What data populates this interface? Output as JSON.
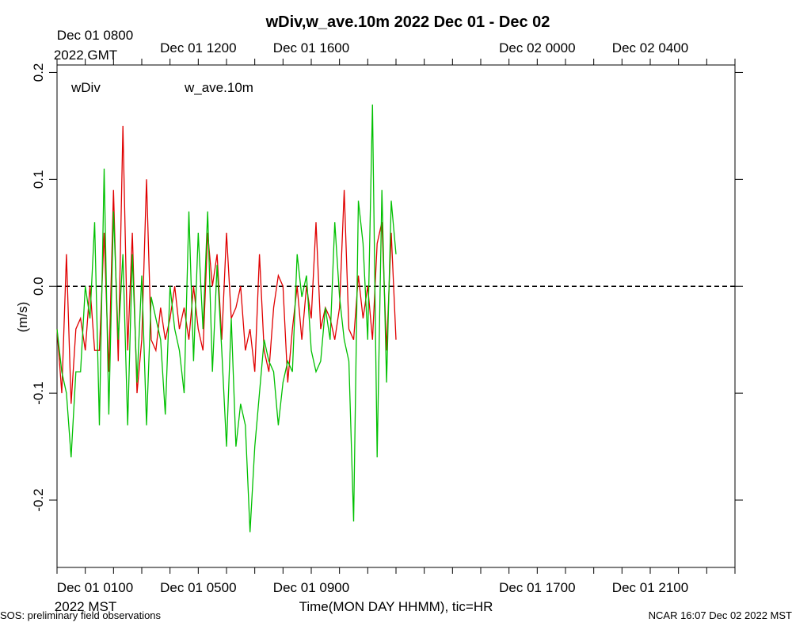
{
  "chart_data": {
    "type": "line",
    "title": "wDiv,w_ave.10m 2022 Dec 01 - Dec 02",
    "y_label": "(m/s)",
    "x_label": "Time(MON DAY HHMM), tic=HR",
    "x_sublabel": "2022 MST",
    "x2_sublabel": "2022 GMT",
    "footer_left": "SOS: preliminary field observations",
    "footer_right": "NCAR 16:07 Dec 02 2022 MST",
    "x": [
      0,
      0.167,
      0.333,
      0.5,
      0.667,
      0.833,
      1,
      1.167,
      1.333,
      1.5,
      1.667,
      1.833,
      2,
      2.167,
      2.333,
      2.5,
      2.667,
      2.833,
      3,
      3.167,
      3.333,
      3.5,
      3.667,
      3.833,
      4,
      4.167,
      4.333,
      4.5,
      4.667,
      4.833,
      5,
      5.167,
      5.333,
      5.5,
      5.667,
      5.833,
      6,
      6.167,
      6.333,
      6.5,
      6.667,
      6.833,
      7,
      7.167,
      7.333,
      7.5,
      7.667,
      7.833,
      8,
      8.167,
      8.333,
      8.5,
      8.667,
      8.833,
      9,
      9.167,
      9.333,
      9.5,
      9.667,
      9.833,
      10,
      10.167,
      10.333,
      10.5,
      10.667,
      10.833,
      11,
      11.167,
      11.333,
      11.5,
      11.667,
      11.833,
      12
    ],
    "series": [
      {
        "name": "wDiv",
        "color": "#e00000",
        "values": [
          -0.04,
          -0.1,
          0.03,
          -0.11,
          -0.04,
          -0.03,
          -0.06,
          0.0,
          -0.06,
          -0.06,
          0.05,
          -0.08,
          0.09,
          -0.07,
          0.15,
          -0.06,
          0.05,
          -0.1,
          -0.05,
          0.1,
          -0.05,
          -0.06,
          -0.02,
          -0.05,
          -0.03,
          0.0,
          -0.04,
          -0.02,
          -0.05,
          0.0,
          -0.04,
          -0.06,
          0.05,
          0.0,
          0.03,
          -0.05,
          0.05,
          -0.03,
          -0.02,
          0.0,
          -0.06,
          -0.04,
          -0.08,
          0.03,
          -0.06,
          -0.08,
          -0.02,
          0.01,
          0.0,
          -0.09,
          -0.04,
          0.0,
          -0.05,
          0.0,
          -0.03,
          0.06,
          -0.04,
          -0.02,
          -0.03,
          -0.05,
          -0.02,
          0.09,
          -0.04,
          -0.05,
          0.01,
          -0.03,
          0.0,
          -0.05,
          0.04,
          0.06,
          -0.06,
          0.05,
          -0.05
        ]
      },
      {
        "name": "w_ave.10m",
        "color": "#00c000",
        "values": [
          -0.04,
          -0.08,
          -0.1,
          -0.16,
          -0.08,
          -0.08,
          0.0,
          -0.03,
          0.06,
          -0.13,
          0.11,
          -0.12,
          0.07,
          -0.05,
          0.03,
          -0.13,
          0.03,
          -0.09,
          0.01,
          -0.13,
          -0.01,
          -0.03,
          -0.05,
          -0.12,
          0.0,
          -0.04,
          -0.06,
          -0.1,
          0.07,
          -0.07,
          0.05,
          -0.04,
          0.07,
          -0.08,
          0.02,
          -0.06,
          -0.15,
          -0.03,
          -0.15,
          -0.11,
          -0.13,
          -0.23,
          -0.15,
          -0.1,
          -0.05,
          -0.07,
          -0.08,
          -0.13,
          -0.09,
          -0.07,
          -0.08,
          0.03,
          -0.01,
          0.01,
          -0.06,
          -0.08,
          -0.07,
          -0.02,
          -0.05,
          0.06,
          -0.01,
          -0.05,
          -0.07,
          -0.22,
          0.08,
          0.04,
          -0.05,
          0.17,
          -0.16,
          0.09,
          -0.09,
          0.08,
          0.03
        ]
      }
    ],
    "xlim": [
      0,
      24
    ],
    "xticks": [
      {
        "value": 1,
        "label": "Dec 01 0100"
      },
      {
        "value": 5,
        "label": "Dec 01 0500"
      },
      {
        "value": 9,
        "label": "Dec 01 0900"
      },
      {
        "value": 17,
        "label": "Dec 01 1700"
      },
      {
        "value": 21,
        "label": "Dec 01 2100"
      }
    ],
    "x2ticks": [
      {
        "value": 1,
        "label": "Dec 01 0800"
      },
      {
        "value": 5,
        "label": "Dec 01 1200"
      },
      {
        "value": 9,
        "label": "Dec 01 1600"
      },
      {
        "value": 17,
        "label": "Dec 02 0000"
      },
      {
        "value": 21,
        "label": "Dec 02 0400"
      }
    ],
    "xminor_ticks": [
      0,
      2,
      3,
      4,
      6,
      7,
      8,
      10,
      11,
      12,
      13,
      14,
      15,
      16,
      18,
      19,
      20,
      22,
      23,
      24
    ],
    "ylim": [
      -0.263,
      0.207
    ],
    "yticks": [
      -0.2,
      -0.1,
      {
        "value": 0,
        "label": "0.0"
      },
      0.1,
      0.2
    ],
    "reference_line": 0
  }
}
